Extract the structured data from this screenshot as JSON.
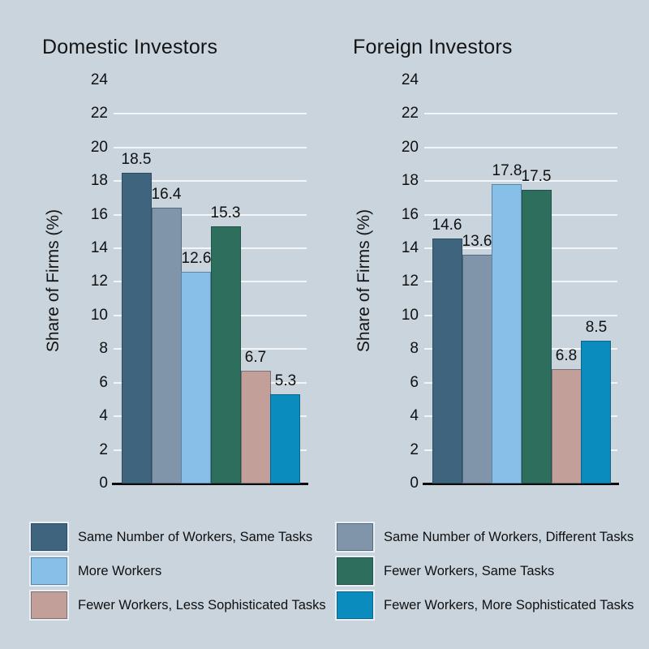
{
  "figure": {
    "background_color": "#c9d4dd",
    "grid_color": "#f3f6f9",
    "axis_color": "#0b0b0b",
    "text_color": "#101010"
  },
  "chart_data": [
    {
      "type": "bar",
      "title": "Domestic Investors",
      "ylabel": "Share of Firms (%)",
      "categories": [
        "Same Number of Workers, Same Tasks",
        "Same Number of Workers, Different Tasks",
        "More Workers",
        "Fewer Workers, Same Tasks",
        "Fewer Workers, Less Sophisticated Tasks",
        "Fewer Workers, More Sophisticated Tasks"
      ],
      "values": [
        18.5,
        16.4,
        12.6,
        15.3,
        6.7,
        5.3
      ],
      "value_labels": [
        "18.5",
        "16.4",
        "12.6",
        "15.3",
        "6.7",
        "5.3"
      ],
      "bar_colors": [
        "#3e647e",
        "#8094aa",
        "#86c0e8",
        "#2e6e5d",
        "#c2a099",
        "#0a8cbe"
      ],
      "ylim": [
        0,
        24
      ],
      "ytick_step": 2,
      "grid": true,
      "legend_position": "bottom"
    },
    {
      "type": "bar",
      "title": "Foreign Investors",
      "ylabel": "Share of Firms (%)",
      "categories": [
        "Same Number of Workers, Same Tasks",
        "Same Number of Workers, Different Tasks",
        "More Workers",
        "Fewer Workers, Same Tasks",
        "Fewer Workers, Less Sophisticated Tasks",
        "Fewer Workers, More Sophisticated Tasks"
      ],
      "values": [
        14.6,
        13.6,
        17.8,
        17.5,
        6.8,
        8.5
      ],
      "value_labels": [
        "14.6",
        "13.6",
        "17.8",
        "17.5",
        "6.8",
        "8.5"
      ],
      "bar_colors": [
        "#3e647e",
        "#8094aa",
        "#86c0e8",
        "#2e6e5d",
        "#c2a099",
        "#0a8cbe"
      ],
      "ylim": [
        0,
        24
      ],
      "ytick_step": 2,
      "grid": true,
      "legend_position": "bottom"
    }
  ],
  "legend": {
    "columns": [
      {
        "items": [
          {
            "label": "Same Number of Workers, Same Tasks",
            "color": "#3e647e"
          },
          {
            "label": "More Workers",
            "color": "#86c0e8"
          },
          {
            "label": "Fewer Workers, Less Sophisticated Tasks",
            "color": "#c2a099"
          }
        ]
      },
      {
        "items": [
          {
            "label": "Same Number of Workers, Different Tasks",
            "color": "#8094aa"
          },
          {
            "label": "Fewer Workers, Same Tasks",
            "color": "#2e6e5d"
          },
          {
            "label": "Fewer Workers, More Sophisticated Tasks",
            "color": "#0a8cbe"
          }
        ]
      }
    ]
  }
}
